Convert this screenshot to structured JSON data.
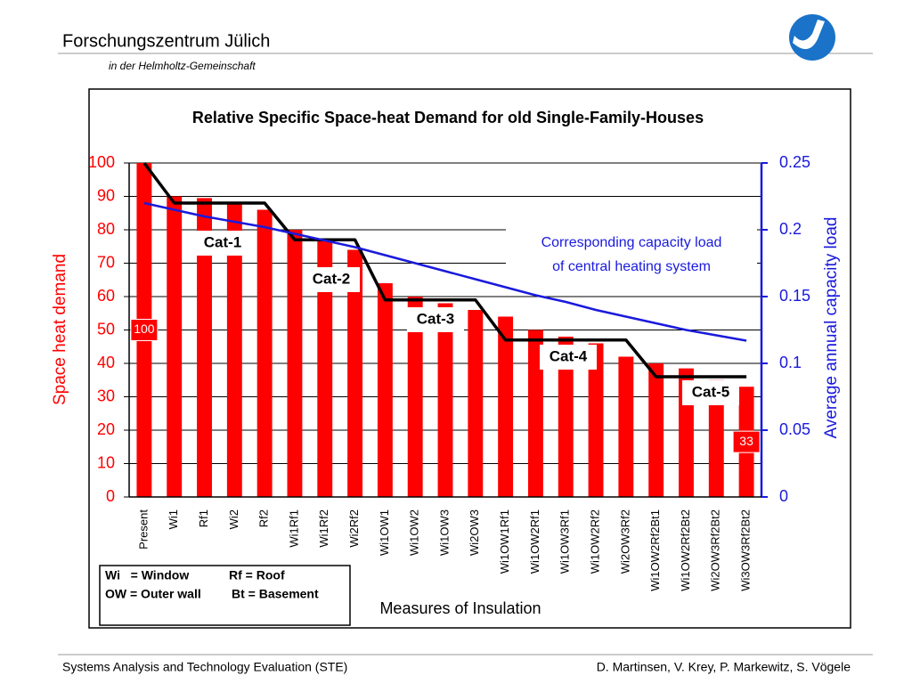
{
  "header": {
    "title": "Forschungszentrum Jülich",
    "subtitle": "in der Helmholtz-Gemeinschaft"
  },
  "footer": {
    "left": "Systems Analysis and Technology Evaluation (STE)",
    "right": "D. Martinsen, V. Krey, P. Markewitz, S. Vögele"
  },
  "chart_data": {
    "type": "bar",
    "title": "Relative Specific Space-heat Demand for old Single-Family-Houses",
    "y_label": "Space heat demand",
    "y2_label": "Average annual capacity load",
    "x_label": "Measures of Insulation",
    "categories": [
      "Present",
      "Wi1",
      "Rf1",
      "Wi2",
      "Rf2",
      "Wi1Rf1",
      "Wi1Rf2",
      "Wi2Rf2",
      "Wi1OW1",
      "Wi1OW2",
      "Wi1OW3",
      "Wi2OW3",
      "Wi1OW1Rf1",
      "Wi1OW2Rf1",
      "Wi1OW3Rf1",
      "Wi1OW2Rf2",
      "Wi2OW3Rf2",
      "Wi1OW2Rf2Bt1",
      "Wi1OW2Rf2Bt2",
      "Wi2OW3Rf2Bt2",
      "Wi3OW3Rf2Bt2"
    ],
    "series": [
      {
        "type": "bar",
        "color": "#ff0000",
        "values": [
          100,
          90,
          89.5,
          88,
          86,
          80,
          77,
          74,
          64,
          60,
          58,
          56,
          54,
          50,
          48,
          46,
          42,
          40,
          38.5,
          35,
          33
        ],
        "value_labels": [
          "100",
          null,
          null,
          null,
          null,
          null,
          null,
          null,
          null,
          null,
          null,
          null,
          null,
          null,
          null,
          null,
          null,
          null,
          null,
          null,
          "33"
        ]
      },
      {
        "type": "line",
        "color": "#000000",
        "values": [
          100,
          88,
          88,
          88,
          88,
          77,
          77,
          77,
          59,
          59,
          59,
          59,
          47,
          47,
          47,
          47,
          47,
          36,
          36,
          36,
          36
        ]
      },
      {
        "type": "line",
        "color": "#1a1adc",
        "axis": "y2",
        "values": [
          0.22,
          0.215,
          0.21,
          0.206,
          0.202,
          0.197,
          0.192,
          0.187,
          0.181,
          0.175,
          0.169,
          0.163,
          0.157,
          0.151,
          0.146,
          0.14,
          0.135,
          0.13,
          0.125,
          0.121,
          0.117
        ]
      }
    ],
    "ylim": [
      0,
      100
    ],
    "yticks": [
      0,
      10,
      20,
      30,
      40,
      50,
      60,
      70,
      80,
      90,
      100
    ],
    "y2lim": [
      0,
      0.25
    ],
    "y2ticks": [
      0,
      0.05,
      0.1,
      0.15,
      0.2,
      0.25
    ],
    "grid": true,
    "annotations": [
      "Cat-1",
      "Cat-2",
      "Cat-3",
      "Cat-4",
      "Cat-5"
    ],
    "note_lines": [
      "Corresponding capacity load",
      "of central heating system"
    ],
    "abbreviations": [
      "Wi   = Window",
      "Rf = Roof",
      "OW = Outer wall",
      "Bt = Basement"
    ]
  }
}
